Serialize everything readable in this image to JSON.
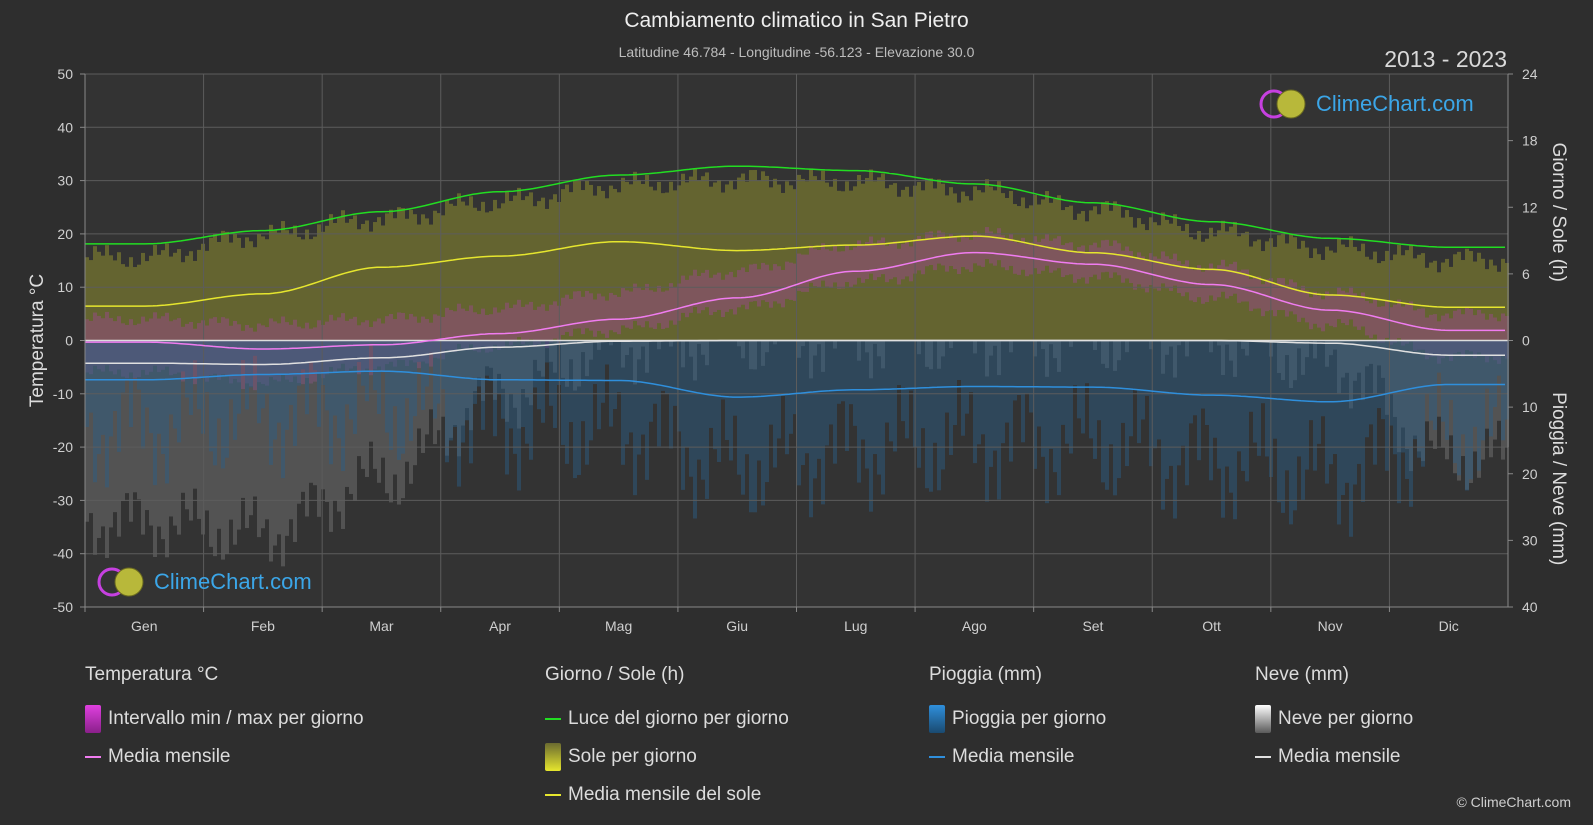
{
  "title": "Cambiamento climatico in San Pietro",
  "subtitle": "Latitudine 46.784 - Longitudine -56.123 - Elevazione 30.0",
  "years": "2013 - 2023",
  "copyright": "© ClimeChart.com",
  "logo_text": "ClimeChart.com",
  "chart_data": {
    "type": "area",
    "months": [
      "Gen",
      "Feb",
      "Mar",
      "Apr",
      "Mag",
      "Giu",
      "Lug",
      "Ago",
      "Set",
      "Ott",
      "Nov",
      "Dic"
    ],
    "y_left": {
      "label": "Temperatura °C",
      "ticks": [
        50,
        40,
        30,
        20,
        10,
        0,
        -10,
        -20,
        -30,
        -40,
        -50
      ],
      "lim": [
        -50,
        50
      ]
    },
    "y_right_top": {
      "label": "Giorno / Sole (h)",
      "ticks": [
        24,
        18,
        12,
        6,
        0
      ],
      "lim": [
        0,
        24
      ]
    },
    "y_right_bottom": {
      "label": "Pioggia / Neve (mm)",
      "ticks": [
        0,
        10,
        20,
        30,
        40
      ],
      "lim": [
        0,
        40
      ]
    },
    "series": [
      {
        "name": "Luce del giorno per giorno",
        "unit": "h",
        "color": "#22dd22",
        "values": [
          8.7,
          9.9,
          11.6,
          13.4,
          14.9,
          15.7,
          15.3,
          14.1,
          12.4,
          10.7,
          9.2,
          8.4
        ]
      },
      {
        "name": "Media mensile del sole",
        "unit": "h",
        "color": "#e6e62e",
        "values": [
          3.1,
          4.2,
          6.6,
          7.6,
          8.9,
          8.1,
          8.6,
          9.4,
          7.9,
          6.4,
          4.1,
          3.0
        ]
      },
      {
        "name": "Sole per giorno",
        "unit": "h",
        "color": "#9a9a30",
        "values": [
          7.5,
          9.5,
          11.0,
          12.5,
          14.0,
          14.5,
          14.3,
          13.5,
          11.8,
          9.8,
          8.3,
          7.3
        ]
      },
      {
        "name": "Media mensile",
        "group": "Temperatura",
        "unit": "°C",
        "color": "#f07cf0",
        "values": [
          -0.3,
          -1.6,
          -0.8,
          1.3,
          4.0,
          8.0,
          13.0,
          16.5,
          14.3,
          10.5,
          5.7,
          1.9
        ]
      },
      {
        "name": "Intervallo min / max per giorno",
        "unit": "°C",
        "color": "#c83cc8",
        "min": [
          -6,
          -8,
          -5,
          -1,
          2,
          6,
          11,
          14,
          12,
          8,
          3,
          -3
        ],
        "max": [
          4,
          3,
          4,
          6,
          9,
          13,
          18,
          20,
          18,
          14,
          9,
          5
        ]
      },
      {
        "name": "Media mensile",
        "group": "Pioggia",
        "unit": "mm",
        "color": "#2f8fdc",
        "values": [
          5.9,
          5.1,
          4.6,
          5.9,
          6.0,
          8.5,
          7.4,
          6.9,
          7.0,
          8.2,
          9.2,
          6.6
        ]
      },
      {
        "name": "Media mensile",
        "group": "Neve",
        "unit": "mm",
        "color": "#e0e0e0",
        "values": [
          3.4,
          3.6,
          2.6,
          1.0,
          0.1,
          0.0,
          0.0,
          0.0,
          0.0,
          0.0,
          0.4,
          2.2
        ]
      }
    ]
  },
  "legend": [
    {
      "title": "Temperatura °C",
      "items": [
        {
          "label": "Intervallo min / max per giorno",
          "swatch": "box",
          "color": "#e040e0"
        },
        {
          "label": "Media mensile",
          "swatch": "line",
          "color": "#f07cf0"
        }
      ]
    },
    {
      "title": "Giorno / Sole (h)",
      "items": [
        {
          "label": "Luce del giorno per giorno",
          "swatch": "line",
          "color": "#22dd22"
        },
        {
          "label": "Sole per giorno",
          "swatch": "box",
          "color": "#d8d83a"
        },
        {
          "label": "Media mensile del sole",
          "swatch": "line",
          "color": "#e6e62e"
        }
      ]
    },
    {
      "title": "Pioggia (mm)",
      "items": [
        {
          "label": "Pioggia per giorno",
          "swatch": "box",
          "color": "#2f8fdc"
        },
        {
          "label": "Media mensile",
          "swatch": "line",
          "color": "#2f8fdc"
        }
      ]
    },
    {
      "title": "Neve (mm)",
      "items": [
        {
          "label": "Neve per giorno",
          "swatch": "box",
          "color": "#dddddd"
        },
        {
          "label": "Media mensile",
          "swatch": "line",
          "color": "#e0e0e0"
        }
      ]
    }
  ]
}
